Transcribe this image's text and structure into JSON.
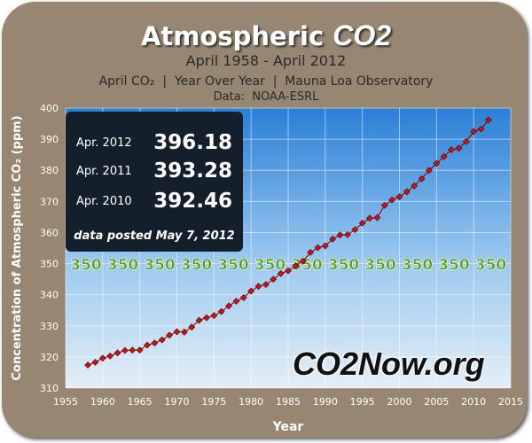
{
  "title": {
    "main": "Atmospheric",
    "co2": "CO2"
  },
  "subtitle": "April 1958 - April 2012",
  "info_line": "April CO₂  |  Year Over Year  |  Mauna Loa Observatory",
  "source": "Data:  NOAA-ESRL",
  "readings": [
    {
      "label": "Apr. 2012",
      "value": "396.18"
    },
    {
      "label": "Apr. 2011",
      "value": "393.28"
    },
    {
      "label": "Apr. 2010",
      "value": "392.46"
    }
  ],
  "posted": "data posted May 7, 2012",
  "watermark": "CO2Now.org",
  "chart_data": {
    "type": "scatter",
    "title": "Atmospheric CO2",
    "xlabel": "Year",
    "ylabel": "Concentration of Atmospheric CO₂ (ppm)",
    "xlim": [
      1955,
      2015
    ],
    "ylim": [
      310,
      400
    ],
    "xticks": [
      "1955",
      "1960",
      "1965",
      "1970",
      "1975",
      "1980",
      "1985",
      "1990",
      "1995",
      "2000",
      "2005",
      "2010",
      "2015"
    ],
    "yticks": [
      "310",
      "320",
      "330",
      "340",
      "350",
      "360",
      "370",
      "380",
      "390",
      "400"
    ],
    "grid": true,
    "reference_line": {
      "value": 350,
      "label": "350",
      "color": "#5a9e10"
    },
    "marker_color": "#d01010",
    "x": [
      1958,
      1959,
      1960,
      1961,
      1962,
      1963,
      1964,
      1965,
      1966,
      1967,
      1968,
      1969,
      1970,
      1971,
      1972,
      1973,
      1974,
      1975,
      1976,
      1977,
      1978,
      1979,
      1980,
      1981,
      1982,
      1983,
      1984,
      1985,
      1986,
      1987,
      1988,
      1989,
      1990,
      1991,
      1992,
      1993,
      1994,
      1995,
      1996,
      1997,
      1998,
      1999,
      2000,
      2001,
      2002,
      2003,
      2004,
      2005,
      2006,
      2007,
      2008,
      2009,
      2010,
      2011,
      2012
    ],
    "y": [
      317.4,
      318.3,
      319.6,
      320.3,
      321.3,
      322.1,
      322.2,
      322.2,
      323.8,
      324.5,
      325.5,
      327.0,
      328.1,
      328.0,
      329.6,
      331.8,
      332.6,
      333.3,
      334.6,
      336.4,
      337.9,
      339.1,
      341.2,
      342.7,
      343.3,
      345.0,
      346.8,
      347.7,
      349.3,
      350.8,
      353.6,
      355.1,
      355.7,
      357.9,
      359.2,
      359.3,
      360.9,
      363.0,
      364.6,
      364.8,
      368.7,
      370.5,
      371.5,
      373.1,
      375.0,
      377.3,
      380.0,
      382.2,
      384.4,
      386.6,
      387.1,
      389.2,
      392.46,
      393.28,
      396.18
    ]
  }
}
